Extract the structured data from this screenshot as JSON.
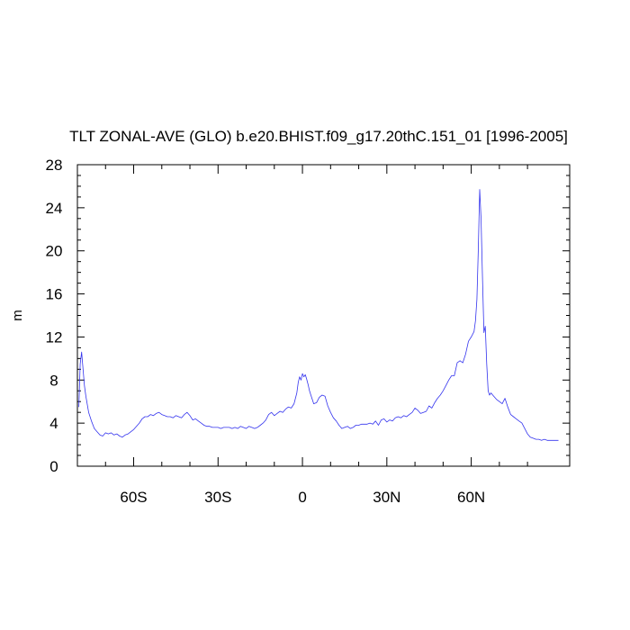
{
  "chart_data": {
    "type": "line",
    "title": "TLT ZONAL-AVE (GLO) b.e20.BHIST.f09_g17.20thC.151_01 [1996-2005]",
    "ylabel": "m",
    "xlabel": "",
    "xlim": [
      -80,
      95
    ],
    "ylim": [
      0,
      28
    ],
    "y_ticks": [
      0,
      4,
      8,
      12,
      16,
      20,
      24,
      28
    ],
    "x_ticks": [
      {
        "value": -60,
        "label": "60S"
      },
      {
        "value": -30,
        "label": "30S"
      },
      {
        "value": 0,
        "label": "0"
      },
      {
        "value": 30,
        "label": "30N"
      },
      {
        "value": 60,
        "label": "60N"
      }
    ],
    "grid": false,
    "series": [
      {
        "color": "#3333ee",
        "x": [
          -79.5,
          -79,
          -78.5,
          -78,
          -77.5,
          -77,
          -76,
          -75,
          -74,
          -73,
          -72,
          -71,
          -70,
          -69,
          -68,
          -67,
          -66,
          -65,
          -64,
          -63,
          -62,
          -61,
          -60,
          -59,
          -58,
          -57,
          -56,
          -55,
          -54,
          -53,
          -52,
          -51,
          -50,
          -49,
          -48,
          -47,
          -46,
          -45,
          -44,
          -43,
          -42,
          -41,
          -40,
          -39,
          -38,
          -37,
          -36,
          -35,
          -34,
          -33,
          -32,
          -31,
          -30,
          -29,
          -28,
          -27,
          -26,
          -25,
          -24,
          -23,
          -22,
          -21,
          -20,
          -19,
          -18,
          -17,
          -16,
          -15,
          -14,
          -13,
          -12,
          -11,
          -10,
          -9,
          -8,
          -7,
          -6,
          -5,
          -4,
          -3,
          -2,
          -1.5,
          -1,
          -0.5,
          0,
          0.5,
          1,
          1.5,
          2,
          2.5,
          3,
          4,
          5,
          6,
          7,
          8,
          9,
          10,
          11,
          12,
          13,
          14,
          15,
          16,
          17,
          18,
          19,
          20,
          21,
          22,
          23,
          24,
          25,
          26,
          27,
          28,
          29,
          30,
          31,
          32,
          33,
          34,
          35,
          36,
          37,
          38,
          39,
          40,
          41,
          42,
          43,
          44,
          45,
          46,
          47,
          48,
          49,
          50,
          51,
          52,
          53,
          54,
          55,
          56,
          57,
          58,
          59,
          60,
          61,
          61.5,
          62,
          62.5,
          63,
          63.5,
          64,
          64.5,
          65,
          65.5,
          66,
          66.5,
          67,
          68,
          69,
          70,
          71,
          72,
          73,
          74,
          75,
          76,
          77,
          78,
          79,
          80,
          81,
          82,
          83,
          84,
          85,
          86,
          87,
          88,
          89,
          90,
          91
        ],
        "y": [
          5.5,
          9.5,
          10.6,
          9.0,
          7.5,
          6.5,
          5.0,
          4.2,
          3.5,
          3.2,
          2.9,
          2.8,
          3.1,
          3.0,
          3.1,
          2.9,
          3.0,
          2.8,
          2.7,
          2.9,
          3.0,
          3.2,
          3.4,
          3.7,
          4.0,
          4.4,
          4.6,
          4.6,
          4.8,
          4.7,
          4.9,
          5.0,
          4.8,
          4.7,
          4.6,
          4.6,
          4.5,
          4.7,
          4.6,
          4.5,
          4.8,
          5.0,
          4.7,
          4.3,
          4.4,
          4.2,
          4.0,
          3.8,
          3.7,
          3.7,
          3.6,
          3.6,
          3.6,
          3.5,
          3.6,
          3.6,
          3.6,
          3.5,
          3.6,
          3.5,
          3.7,
          3.6,
          3.5,
          3.7,
          3.6,
          3.5,
          3.6,
          3.8,
          4.0,
          4.3,
          4.8,
          5.0,
          4.7,
          4.9,
          5.1,
          5.0,
          5.3,
          5.5,
          5.4,
          5.8,
          6.8,
          7.8,
          8.3,
          8.0,
          8.6,
          8.3,
          8.5,
          8.1,
          7.6,
          7.0,
          6.6,
          5.8,
          5.9,
          6.4,
          6.6,
          6.5,
          5.6,
          5.0,
          4.5,
          4.2,
          3.8,
          3.5,
          3.6,
          3.7,
          3.5,
          3.6,
          3.8,
          3.8,
          3.9,
          3.9,
          3.9,
          4.0,
          3.9,
          4.2,
          3.8,
          4.3,
          4.4,
          4.1,
          4.3,
          4.2,
          4.5,
          4.6,
          4.5,
          4.7,
          4.6,
          4.8,
          5.0,
          5.4,
          5.2,
          4.9,
          5.0,
          5.1,
          5.6,
          5.4,
          5.9,
          6.3,
          6.6,
          7.0,
          7.5,
          8.0,
          8.4,
          8.4,
          9.6,
          9.8,
          9.6,
          10.4,
          11.6,
          12.0,
          12.5,
          13.5,
          15.5,
          20.0,
          25.7,
          23.0,
          17.5,
          12.4,
          13.0,
          9.5,
          7.0,
          6.6,
          6.8,
          6.5,
          6.2,
          6.0,
          5.8,
          6.3,
          5.5,
          4.8,
          4.6,
          4.4,
          4.2,
          4.0,
          3.5,
          3.0,
          2.7,
          2.6,
          2.5,
          2.5,
          2.4,
          2.5,
          2.4,
          2.4,
          2.4,
          2.4,
          2.4
        ]
      }
    ]
  }
}
